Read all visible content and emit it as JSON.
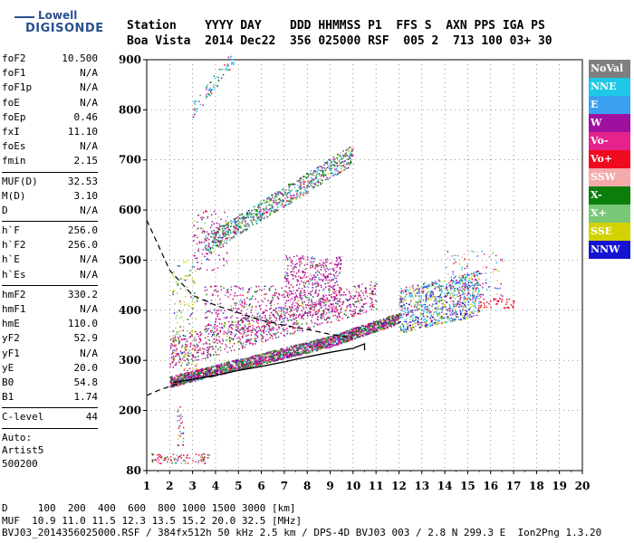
{
  "logo": {
    "line1": "Lowell",
    "line2": "DIGISONDE"
  },
  "header": {
    "labels": "Station    YYYY DAY    DDD HHMMSS P1  FFS S  AXN PPS IGA PS",
    "values": "Boa Vista  2014 Dec22  356 025000 RSF  005 2  713 100 03+ 30"
  },
  "params_groups": [
    [
      [
        "foF2",
        "10.500"
      ],
      [
        "foF1",
        "N/A"
      ],
      [
        "foF1p",
        "N/A"
      ],
      [
        "foE",
        "N/A"
      ],
      [
        "foEp",
        "0.46"
      ],
      [
        "fxI",
        "11.10"
      ],
      [
        "foEs",
        "N/A"
      ],
      [
        "fmin",
        "2.15"
      ]
    ],
    [
      [
        "MUF(D)",
        "32.53"
      ],
      [
        "M(D)",
        "3.10"
      ],
      [
        "D",
        "N/A"
      ]
    ],
    [
      [
        "h`F",
        "256.0"
      ],
      [
        "h`F2",
        "256.0"
      ],
      [
        "h`E",
        "N/A"
      ],
      [
        "h`Es",
        "N/A"
      ]
    ],
    [
      [
        "hmF2",
        "330.2"
      ],
      [
        "hmF1",
        "N/A"
      ],
      [
        "hmE",
        "110.0"
      ],
      [
        "yF2",
        "52.9"
      ],
      [
        "yF1",
        "N/A"
      ],
      [
        "yE",
        "20.0"
      ],
      [
        "B0",
        "54.8"
      ],
      [
        "B1",
        "1.74"
      ]
    ],
    [
      [
        "C-level",
        "44"
      ]
    ]
  ],
  "auto": {
    "line1": "Auto:",
    "line2": "Artist5",
    "line3": "500200"
  },
  "legend": [
    {
      "label": "NoVal",
      "color": "#7f7f7f"
    },
    {
      "label": "NNE",
      "color": "#1ec8e6"
    },
    {
      "label": "E",
      "color": "#3ca0f0"
    },
    {
      "label": "W",
      "color": "#a0109e"
    },
    {
      "label": "Vo-",
      "color": "#e6228c"
    },
    {
      "label": "Vo+",
      "color": "#f00a1e"
    },
    {
      "label": "SSW",
      "color": "#f4aaaa"
    },
    {
      "label": "X-",
      "color": "#0a7d0a"
    },
    {
      "label": "X+",
      "color": "#78c878"
    },
    {
      "label": "SSE",
      "color": "#d2d200"
    },
    {
      "label": "NNW",
      "color": "#1414d2"
    }
  ],
  "chart_data": {
    "type": "scatter",
    "x_ticks": [
      "1",
      "2",
      "3",
      "4",
      "5",
      "6",
      "7",
      "8",
      "9",
      "10",
      "11",
      "12",
      "13",
      "14",
      "15",
      "16",
      "17",
      "18",
      "19",
      "20"
    ],
    "y_ticks": [
      "80",
      "200",
      "300",
      "400",
      "500",
      "600",
      "700",
      "800",
      "900"
    ],
    "xlim": [
      1,
      20
    ],
    "ylim": [
      80,
      900
    ],
    "grid": true,
    "legend_position": "right",
    "profile_curve": {
      "x": [
        2.15,
        3,
        4,
        5,
        6,
        7,
        8,
        9,
        10,
        10.5,
        10.5
      ],
      "y": [
        256,
        262,
        270,
        280,
        288,
        297,
        307,
        316,
        324,
        333,
        320
      ]
    },
    "dashed_curve": {
      "x": [
        1,
        1.5,
        2,
        3,
        4,
        5,
        6,
        7,
        8,
        9,
        10
      ],
      "y": [
        580,
        530,
        480,
        430,
        410,
        395,
        380,
        370,
        362,
        352,
        345
      ]
    },
    "lower_dashed": {
      "x": [
        1,
        1.5,
        2,
        2.5
      ],
      "y": [
        230,
        240,
        248,
        256
      ]
    }
  },
  "footer": {
    "line1": "D     100  200  400  600  800 1000 1500 3000 [km]",
    "line2": "MUF  10.9 11.0 11.5 12.3 13.5 15.2 20.0 32.5 [MHz]",
    "line3": "BVJ03_2014356025000.RSF / 384fx512h 50 kHz 2.5 km / DPS-4D BVJ03 003 / 2.8 N 299.3 E  Ion2Png 1.3.20"
  }
}
